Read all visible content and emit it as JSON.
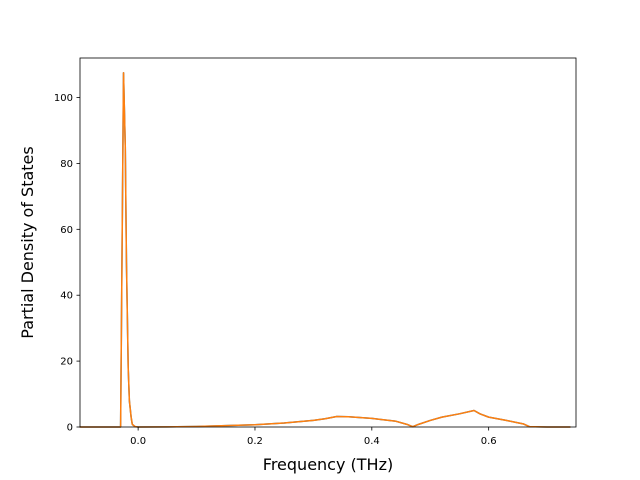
{
  "chart_data": {
    "type": "line",
    "title": "",
    "xlabel": "Frequency (THz)",
    "ylabel": "Partial Density of States",
    "xlim": [
      -0.0995,
      0.7495
    ],
    "ylim": [
      0,
      112
    ],
    "xticks": [
      0.0,
      0.2,
      0.4,
      0.6
    ],
    "xtick_labels": [
      "0.0",
      "0.2",
      "0.4",
      "0.6"
    ],
    "yticks": [
      0,
      20,
      40,
      60,
      80,
      100
    ],
    "ytick_labels": [
      "0",
      "20",
      "40",
      "60",
      "80",
      "100"
    ],
    "grid": false,
    "legend": "none",
    "colors": {
      "series_0": "#1f77b4",
      "series_1": "#ff7f0e"
    },
    "series": [
      {
        "x": [
          -0.1,
          -0.03,
          -0.025,
          -0.022,
          -0.02,
          -0.017,
          -0.015,
          -0.012,
          -0.01,
          -0.005,
          0.0,
          0.05,
          0.1,
          0.15,
          0.2,
          0.25,
          0.3,
          0.32,
          0.34,
          0.36,
          0.4,
          0.44,
          0.46,
          0.47,
          0.48,
          0.5,
          0.52,
          0.55,
          0.575,
          0.585,
          0.6,
          0.63,
          0.66,
          0.67,
          0.7,
          0.74
        ],
        "y": [
          0,
          0,
          107.5,
          85,
          50,
          18,
          8,
          3,
          0.8,
          0.1,
          0,
          0.05,
          0.15,
          0.4,
          0.7,
          1.2,
          2.0,
          2.5,
          3.2,
          3.1,
          2.6,
          1.8,
          0.8,
          0.1,
          0.8,
          2.0,
          3.0,
          4.0,
          5.0,
          4.0,
          3.0,
          2.0,
          0.9,
          0.1,
          0,
          0
        ]
      },
      {
        "x": [
          -0.1,
          -0.03,
          -0.025,
          -0.022,
          -0.02,
          -0.017,
          -0.015,
          -0.012,
          -0.01,
          -0.005,
          0.0,
          0.05,
          0.1,
          0.15,
          0.2,
          0.25,
          0.3,
          0.32,
          0.34,
          0.36,
          0.4,
          0.44,
          0.46,
          0.47,
          0.48,
          0.5,
          0.52,
          0.55,
          0.575,
          0.585,
          0.6,
          0.63,
          0.66,
          0.67,
          0.7,
          0.74
        ],
        "y": [
          0,
          0,
          107.5,
          85,
          50,
          18,
          8,
          3,
          0.8,
          0.1,
          0,
          0.05,
          0.15,
          0.4,
          0.7,
          1.2,
          2.0,
          2.5,
          3.2,
          3.1,
          2.6,
          1.8,
          0.8,
          0.1,
          0.8,
          2.0,
          3.0,
          4.0,
          5.0,
          4.0,
          3.0,
          2.0,
          0.9,
          0.1,
          0,
          0
        ]
      }
    ]
  }
}
